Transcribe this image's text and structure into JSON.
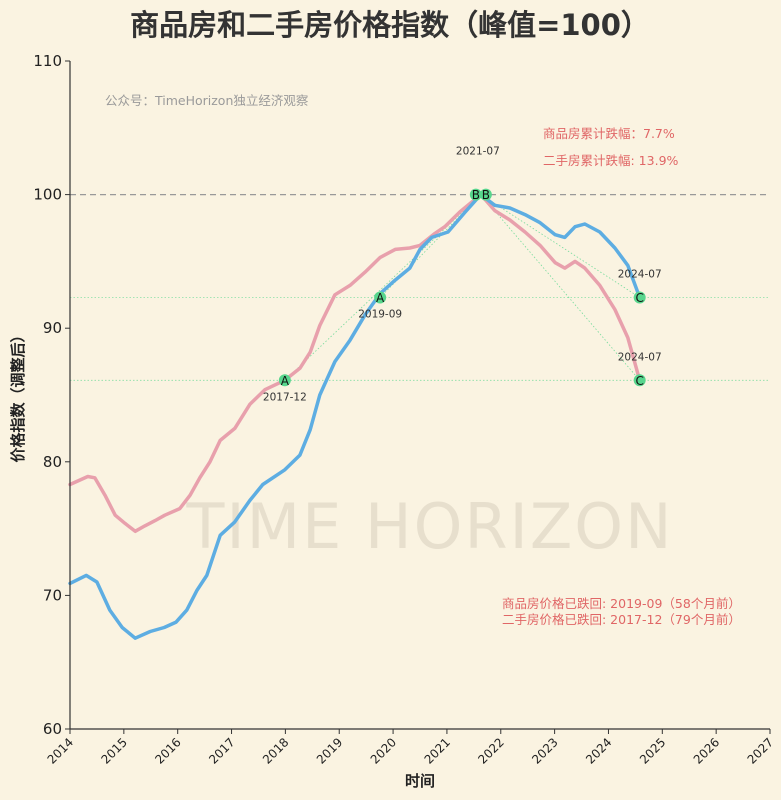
{
  "chart_data": {
    "type": "line",
    "title": "商品房和二手房价格指数（峰值=100）",
    "xlabel": "时间",
    "ylabel": "价格指数（调整后）",
    "xlim": [
      2014,
      2027
    ],
    "ylim": [
      60,
      110
    ],
    "xticks": [
      "2014",
      "2015",
      "2016",
      "2017",
      "2018",
      "2019",
      "2020",
      "2021",
      "2022",
      "2023",
      "2024",
      "2025",
      "2026",
      "2027"
    ],
    "yticks": [
      "60",
      "70",
      "80",
      "90",
      "100",
      "110"
    ],
    "grid": false,
    "legend": "none",
    "watermark": "TIME HORIZON",
    "source_note": "公众号：TimeHorizon独立经济观察",
    "reference_line": {
      "y": 100,
      "style": "dashed",
      "color": "#999999"
    },
    "series": [
      {
        "id": "new-homes",
        "color": "#5dade2",
        "x": [
          2014.0,
          2014.3,
          2014.5,
          2014.74,
          2014.97,
          2015.21,
          2015.49,
          2015.75,
          2015.97,
          2016.17,
          2016.36,
          2016.54,
          2016.79,
          2017.06,
          2017.34,
          2017.58,
          2017.99,
          2018.27,
          2018.46,
          2018.64,
          2018.92,
          2019.2,
          2019.48,
          2019.76,
          2020.04,
          2020.31,
          2020.5,
          2020.72,
          2021.02,
          2021.34,
          2021.63,
          2021.89,
          2022.17,
          2022.45,
          2022.73,
          2023.01,
          2023.19,
          2023.38,
          2023.56,
          2023.84,
          2024.12,
          2024.36,
          2024.58
        ],
        "y": [
          70.9,
          71.5,
          71.0,
          68.9,
          67.6,
          66.8,
          67.3,
          67.6,
          68.0,
          68.9,
          70.4,
          71.5,
          74.5,
          75.5,
          77.1,
          78.3,
          79.4,
          80.5,
          82.4,
          85.0,
          87.5,
          89.1,
          91.0,
          92.6,
          93.6,
          94.5,
          95.9,
          96.8,
          97.2,
          98.7,
          100,
          99.2,
          99.0,
          98.5,
          97.9,
          97.0,
          96.8,
          97.6,
          97.8,
          97.2,
          96.0,
          94.7,
          92.3
        ]
      },
      {
        "id": "second-hand-homes",
        "color": "#e8a0ac",
        "x": [
          2014.0,
          2014.33,
          2014.46,
          2014.65,
          2014.84,
          2015.02,
          2015.21,
          2015.39,
          2015.58,
          2015.76,
          2016.04,
          2016.23,
          2016.41,
          2016.6,
          2016.79,
          2017.06,
          2017.34,
          2017.62,
          2017.99,
          2018.27,
          2018.46,
          2018.64,
          2018.92,
          2019.2,
          2019.48,
          2019.76,
          2020.04,
          2020.31,
          2020.5,
          2020.78,
          2020.96,
          2021.24,
          2021.63,
          2021.89,
          2022.17,
          2022.45,
          2022.73,
          2023.01,
          2023.19,
          2023.38,
          2023.56,
          2023.84,
          2024.12,
          2024.36,
          2024.58
        ],
        "y": [
          78.3,
          78.9,
          78.8,
          77.5,
          76.0,
          75.4,
          74.8,
          75.2,
          75.6,
          76.0,
          76.5,
          77.5,
          78.8,
          80.0,
          81.6,
          82.5,
          84.3,
          85.4,
          86.1,
          87.0,
          88.2,
          90.2,
          92.5,
          93.2,
          94.2,
          95.3,
          95.9,
          96.0,
          96.2,
          97.1,
          97.6,
          98.7,
          100,
          98.8,
          98.1,
          97.2,
          96.2,
          94.9,
          94.5,
          95.0,
          94.5,
          93.2,
          91.4,
          89.3,
          86.1
        ]
      }
    ],
    "markers": [
      {
        "label": "A",
        "date": "2019-09",
        "x": 2019.76,
        "y": 92.3,
        "series": "new-homes",
        "date_pos": "below"
      },
      {
        "label": "A",
        "date": "2017-12",
        "x": 2017.99,
        "y": 86.1,
        "series": "second-hand-homes",
        "date_pos": "below"
      },
      {
        "label": "B",
        "date": "2021-07",
        "x": 2021.63,
        "y": 100,
        "series": "both",
        "date_pos": "above"
      },
      {
        "label": "C",
        "date": "2024-07",
        "x": 2024.58,
        "y": 92.3,
        "series": "new-homes",
        "date_pos": "above"
      },
      {
        "label": "C",
        "date": "2024-07",
        "x": 2024.58,
        "y": 86.1,
        "series": "second-hand-homes",
        "date_pos": "above"
      }
    ],
    "marker_color": "#58d68d",
    "level_lines": [
      92.3,
      86.1
    ],
    "annotations": {
      "color": "#e06666",
      "drop_new": "商品房累计跌幅：7.7%",
      "drop_second": "二手房累计跌幅: 13.9%",
      "revert_new": "商品房价格已跌回: 2019-09（58个月前）",
      "revert_second": "二手房价格已跌回: 2017-12（79个月前）"
    }
  }
}
